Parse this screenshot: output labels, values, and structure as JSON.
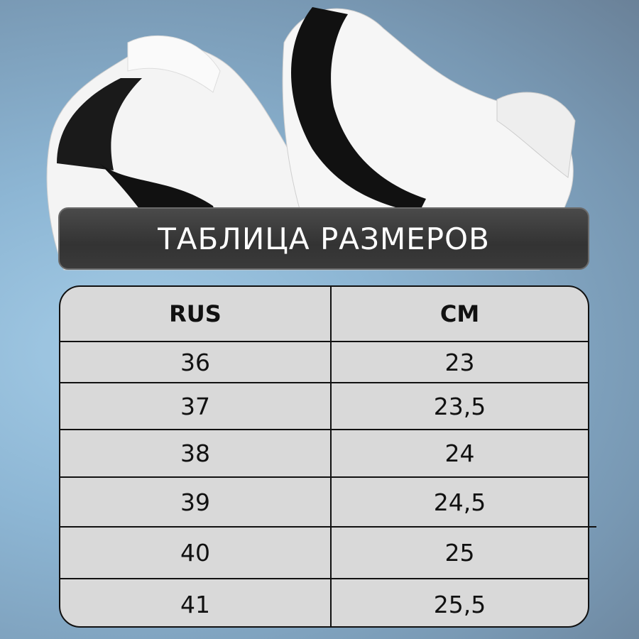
{
  "title": "ТАБЛИЦА РАЗМЕРОВ",
  "table": {
    "headers": [
      "RUS",
      "CM"
    ],
    "rows": [
      [
        "36",
        "23"
      ],
      [
        "37",
        "23,5"
      ],
      [
        "38",
        "24"
      ],
      [
        "39",
        "24,5"
      ],
      [
        "40",
        "25"
      ],
      [
        "41",
        "25,5"
      ]
    ]
  },
  "colors": {
    "background": "#8db6d4",
    "title_bar": "#3a3a3a",
    "table_fill": "#d9d9d9"
  }
}
